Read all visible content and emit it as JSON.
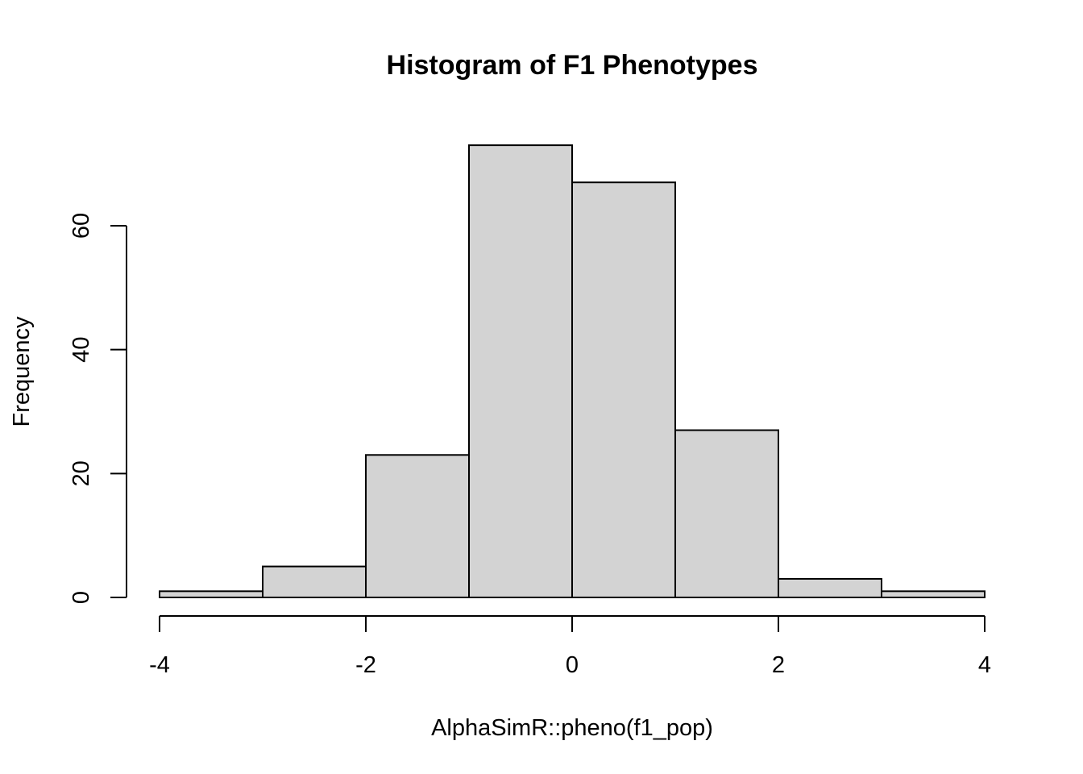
{
  "chart_data": {
    "type": "bar",
    "title": "Histogram of F1 Phenotypes",
    "xlabel": "AlphaSimR::pheno(f1_pop)",
    "ylabel": "Frequency",
    "bins": [
      {
        "start": -4,
        "end": -3,
        "count": 1
      },
      {
        "start": -3,
        "end": -2,
        "count": 5
      },
      {
        "start": -2,
        "end": -1,
        "count": 23
      },
      {
        "start": -1,
        "end": 0,
        "count": 73
      },
      {
        "start": 0,
        "end": 1,
        "count": 67
      },
      {
        "start": 1,
        "end": 2,
        "count": 27
      },
      {
        "start": 2,
        "end": 3,
        "count": 3
      },
      {
        "start": 3,
        "end": 4,
        "count": 1
      }
    ],
    "xlim": [
      -4,
      4
    ],
    "ylim": [
      0,
      73
    ],
    "x_ticks": [
      -4,
      -2,
      0,
      2,
      4
    ],
    "y_ticks": [
      0,
      20,
      40,
      60
    ],
    "grid": false,
    "colors": {
      "bar_fill": "#d3d3d3",
      "bar_stroke": "#000000"
    }
  }
}
